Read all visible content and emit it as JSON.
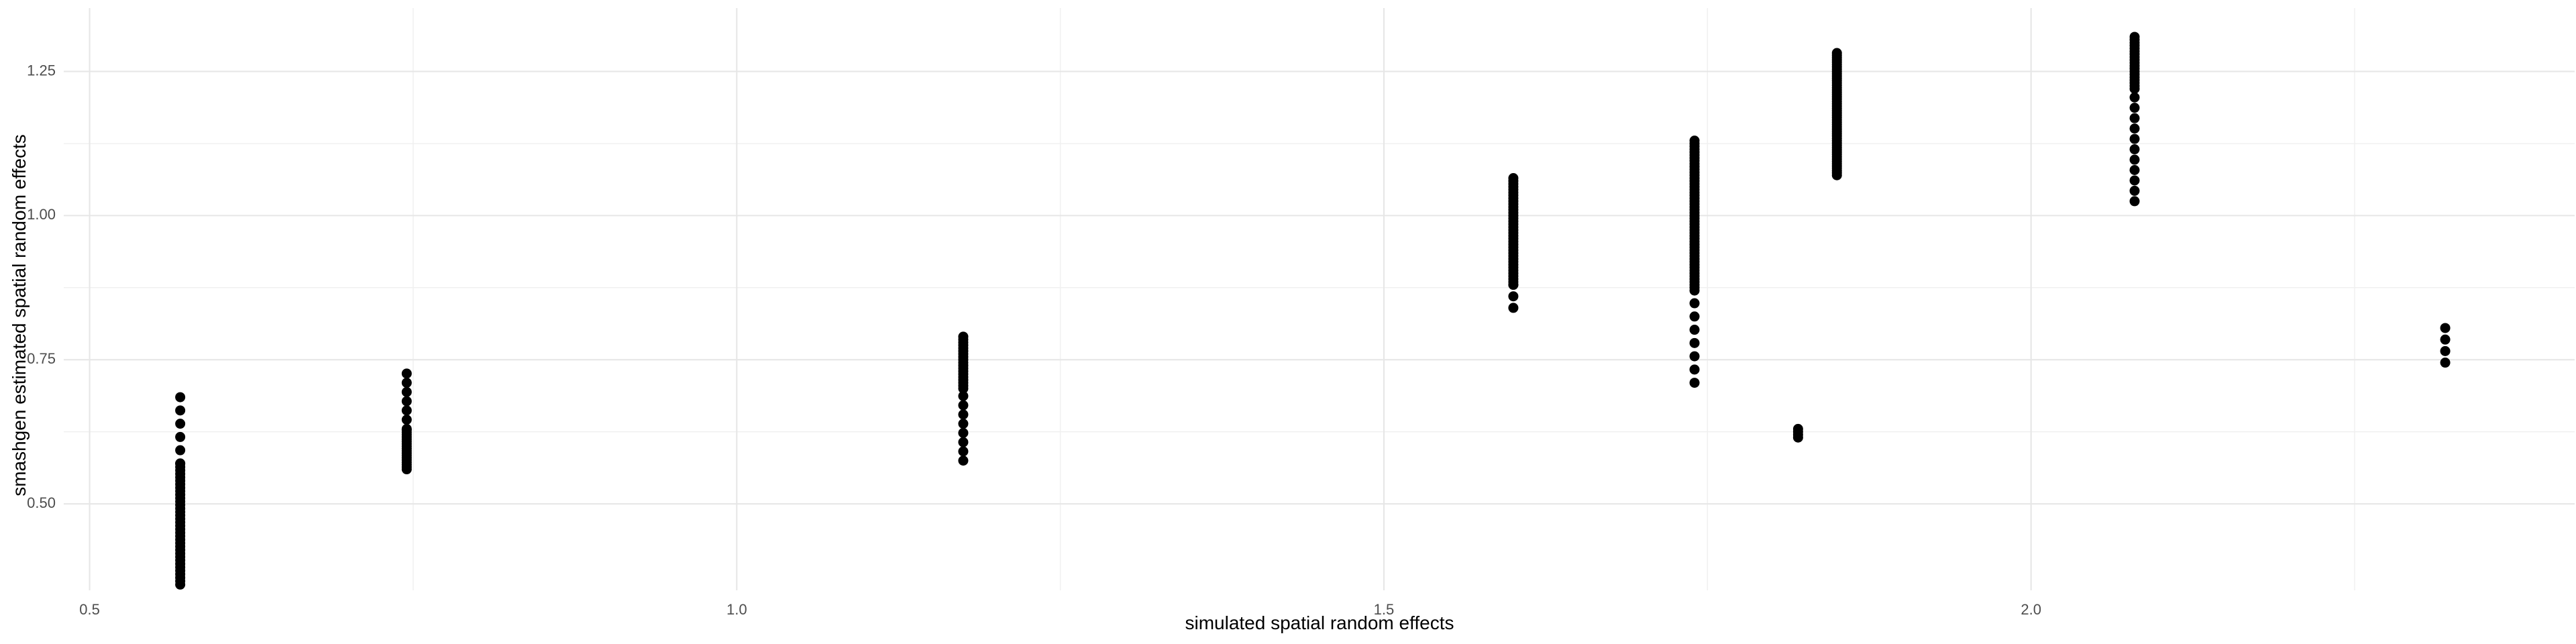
{
  "chart_data": {
    "type": "scatter",
    "title": "",
    "xlabel": "simulated spatial random effects",
    "ylabel": "smashgen estimated spatial random effects",
    "xlim": [
      0.48,
      2.42
    ],
    "ylim": [
      0.35,
      1.36
    ],
    "x_ticks": [
      {
        "value": 0.5,
        "label": "0.5"
      },
      {
        "value": 1.0,
        "label": "1.0"
      },
      {
        "value": 1.5,
        "label": "1.5"
      },
      {
        "value": 2.0,
        "label": "2.0"
      }
    ],
    "y_ticks": [
      {
        "value": 0.5,
        "label": "0.50"
      },
      {
        "value": 0.75,
        "label": "0.75"
      },
      {
        "value": 1.0,
        "label": "1.00"
      },
      {
        "value": 1.25,
        "label": "1.25"
      }
    ],
    "x_minor_gridlines": [
      0.75,
      1.25,
      1.75,
      2.25
    ],
    "y_minor_gridlines": [
      0.625,
      0.875,
      1.125
    ],
    "grid": true,
    "point_color": "#000000",
    "series": [
      {
        "values": [
          {
            "x": 0.57,
            "y_range": [
              0.36,
              0.57
            ],
            "spacing": 0.006
          },
          {
            "x": 0.57,
            "y_range": [
              0.57,
              0.685
            ],
            "spacing": 0.023
          },
          {
            "x": 0.745,
            "y_range": [
              0.56,
              0.63
            ],
            "spacing": 0.004
          },
          {
            "x": 0.745,
            "y_range": [
              0.63,
              0.73
            ],
            "spacing": 0.016
          },
          {
            "x": 1.175,
            "y_range": [
              0.575,
              0.7
            ],
            "spacing": 0.016
          },
          {
            "x": 1.175,
            "y_range": [
              0.7,
              0.79
            ],
            "spacing": 0.005
          },
          {
            "x": 1.6,
            "y_range": [
              0.84,
              0.88
            ],
            "spacing": 0.02
          },
          {
            "x": 1.6,
            "y_range": [
              0.88,
              1.065
            ],
            "spacing": 0.005
          },
          {
            "x": 1.74,
            "y_range": [
              0.71,
              0.87
            ],
            "spacing": 0.023
          },
          {
            "x": 1.74,
            "y_range": [
              0.87,
              1.13
            ],
            "spacing": 0.005
          },
          {
            "x": 1.82,
            "y_range": [
              0.615,
              0.63
            ],
            "spacing": 0.005
          },
          {
            "x": 1.85,
            "y_range": [
              1.07,
              1.285
            ],
            "spacing": 0.004
          },
          {
            "x": 2.08,
            "y_range": [
              1.025,
              1.22
            ],
            "spacing": 0.018
          },
          {
            "x": 2.08,
            "y_range": [
              1.22,
              1.31
            ],
            "spacing": 0.005
          },
          {
            "x": 2.32,
            "y_range": [
              0.745,
              0.82
            ],
            "spacing": 0.02
          }
        ]
      }
    ]
  }
}
